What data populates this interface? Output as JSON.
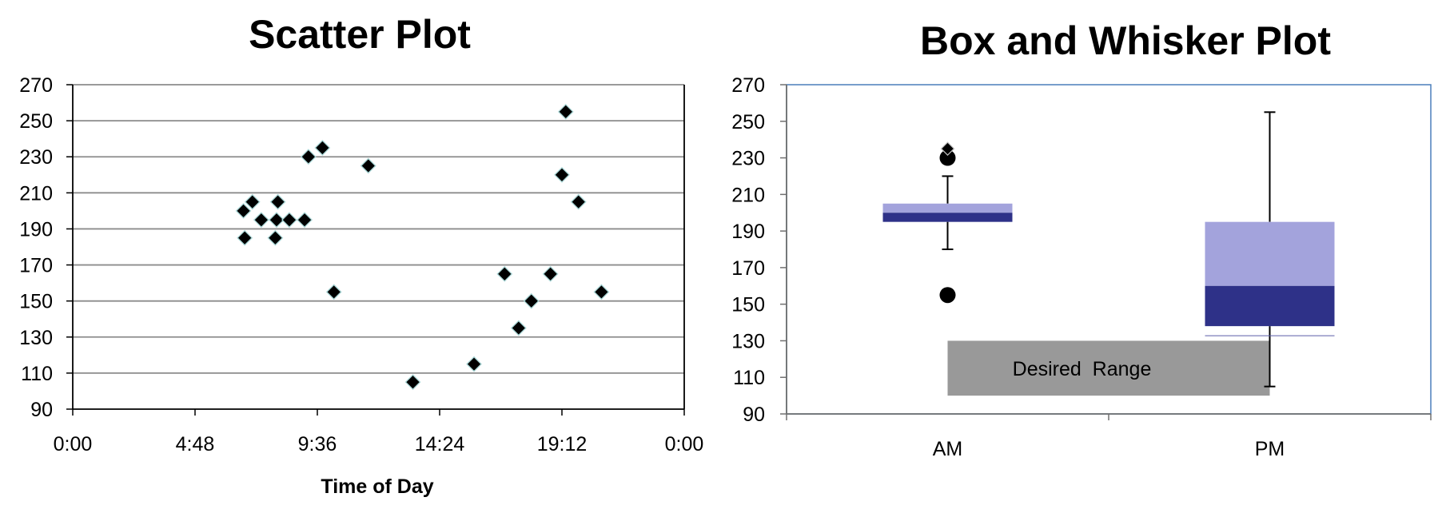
{
  "chart_data": [
    {
      "type": "scatter",
      "title": "Scatter Plot",
      "xlabel": "Time of Day",
      "ylabel": "",
      "x_unit": "hours",
      "xlim": [
        0,
        24
      ],
      "ylim": [
        90,
        270
      ],
      "x_ticks": [
        0,
        4.8,
        9.6,
        14.4,
        19.2,
        24
      ],
      "x_tick_labels": [
        "0:00",
        "4:48",
        "9:36",
        "14:24",
        "19:12",
        "0:00"
      ],
      "y_ticks": [
        90,
        110,
        130,
        150,
        170,
        190,
        210,
        230,
        250,
        270
      ],
      "y_tick_labels": [
        "90",
        "110",
        "130",
        "150",
        "170",
        "190",
        "210",
        "230",
        "250",
        "270"
      ],
      "grid": "horizontal",
      "marker": "diamond",
      "marker_color": "#000000",
      "points": [
        {
          "x": 6.7,
          "y": 200
        },
        {
          "x": 6.75,
          "y": 185
        },
        {
          "x": 7.05,
          "y": 205
        },
        {
          "x": 7.4,
          "y": 195
        },
        {
          "x": 7.95,
          "y": 185
        },
        {
          "x": 8.0,
          "y": 195
        },
        {
          "x": 8.05,
          "y": 205
        },
        {
          "x": 8.5,
          "y": 195
        },
        {
          "x": 9.1,
          "y": 195
        },
        {
          "x": 9.25,
          "y": 230
        },
        {
          "x": 9.8,
          "y": 235
        },
        {
          "x": 10.25,
          "y": 155
        },
        {
          "x": 11.6,
          "y": 225
        },
        {
          "x": 13.35,
          "y": 105
        },
        {
          "x": 15.75,
          "y": 115
        },
        {
          "x": 16.95,
          "y": 165
        },
        {
          "x": 17.5,
          "y": 135
        },
        {
          "x": 18.0,
          "y": 150
        },
        {
          "x": 18.75,
          "y": 165
        },
        {
          "x": 19.2,
          "y": 220
        },
        {
          "x": 19.35,
          "y": 255
        },
        {
          "x": 19.85,
          "y": 205
        },
        {
          "x": 20.75,
          "y": 155
        }
      ]
    },
    {
      "type": "box",
      "title": "Box and Whisker Plot",
      "xlabel": "",
      "ylabel": "",
      "ylim": [
        90,
        270
      ],
      "y_ticks": [
        90,
        110,
        130,
        150,
        170,
        190,
        210,
        230,
        250,
        270
      ],
      "y_tick_labels": [
        "90",
        "110",
        "130",
        "150",
        "170",
        "190",
        "210",
        "230",
        "250",
        "270"
      ],
      "categories": [
        "AM",
        "PM"
      ],
      "grid": "none",
      "colors": {
        "upper_box": "#a3a3dc",
        "lower_box": "#2e3188",
        "band": "#999999",
        "frame": "#4a7ebb"
      },
      "boxes": [
        {
          "category": "AM",
          "whisker_low": 180,
          "q1": 195,
          "median": 200,
          "q3": 205,
          "whisker_high": 220,
          "outliers": [
            230,
            155
          ],
          "extreme_outliers": [
            235
          ]
        },
        {
          "category": "PM",
          "whisker_low": 105,
          "q1": 138,
          "median": 160,
          "q3": 195,
          "whisker_high": 255,
          "outliers": [],
          "extreme_outliers": []
        }
      ],
      "band": {
        "label": "Desired  Range",
        "y_low": 100,
        "y_high": 130
      }
    }
  ]
}
